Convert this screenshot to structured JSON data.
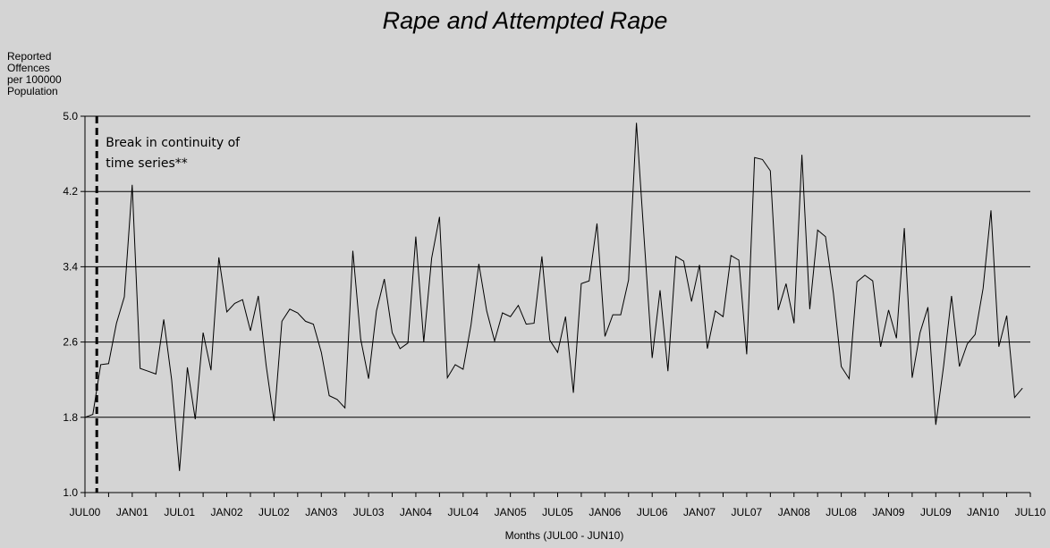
{
  "chart_data": {
    "type": "line",
    "title": "Rape and Attempted Rape",
    "ylabel_lines": [
      "Reported",
      "Offences",
      "per 100000",
      "Population"
    ],
    "xlabel": "Months (JUL00 - JUN10)",
    "ylim": [
      1.0,
      5.0
    ],
    "yticks": [
      "1.0",
      "1.8",
      "2.6",
      "3.4",
      "4.2",
      "5.0"
    ],
    "xtick_labels": [
      "JUL00",
      "JAN01",
      "JUL01",
      "JAN02",
      "JUL02",
      "JAN03",
      "JUL03",
      "JAN04",
      "JUL04",
      "JAN05",
      "JUL05",
      "JAN06",
      "JUL06",
      "JAN07",
      "JUL07",
      "JAN08",
      "JUL08",
      "JAN09",
      "JUL09",
      "JAN10",
      "JUL10"
    ],
    "x_start_month": "JUL00",
    "grid": "horizontal",
    "break_month_index": 1.5,
    "annotation_lines": [
      "Break in continuity of",
      "time series**"
    ],
    "series": [
      {
        "values": [
          1.8,
          1.83,
          2.36,
          2.37,
          2.8,
          3.08,
          4.27,
          2.32,
          2.29,
          2.26,
          2.84,
          2.2,
          1.23,
          2.33,
          1.78,
          2.7,
          2.3,
          3.5,
          2.92,
          3.01,
          3.05,
          2.72,
          3.09,
          2.35,
          1.76,
          2.82,
          2.95,
          2.91,
          2.82,
          2.79,
          2.49,
          2.03,
          1.99,
          1.9,
          3.57,
          2.63,
          2.21,
          2.93,
          3.27,
          2.7,
          2.53,
          2.59,
          3.72,
          2.6,
          3.49,
          3.93,
          2.22,
          2.36,
          2.31,
          2.78,
          3.43,
          2.93,
          2.61,
          2.91,
          2.87,
          2.99,
          2.79,
          2.8,
          3.51,
          2.62,
          2.49,
          2.87,
          2.06,
          3.22,
          3.25,
          3.86,
          2.66,
          2.89,
          2.89,
          3.26,
          4.93,
          3.67,
          2.43,
          3.15,
          2.29,
          3.51,
          3.46,
          3.03,
          3.42,
          2.53,
          2.93,
          2.87,
          3.52,
          3.47,
          2.47,
          4.56,
          4.54,
          4.42,
          2.94,
          3.22,
          2.8,
          4.59,
          2.95,
          3.79,
          3.72,
          3.12,
          2.34,
          2.21,
          3.24,
          3.31,
          3.25,
          2.55,
          2.94,
          2.64,
          3.81,
          2.22,
          2.7,
          2.97,
          1.72,
          2.35,
          3.09,
          2.34,
          2.58,
          2.68,
          3.17,
          4.0,
          2.55,
          2.88,
          2.01,
          2.11
        ]
      }
    ]
  }
}
